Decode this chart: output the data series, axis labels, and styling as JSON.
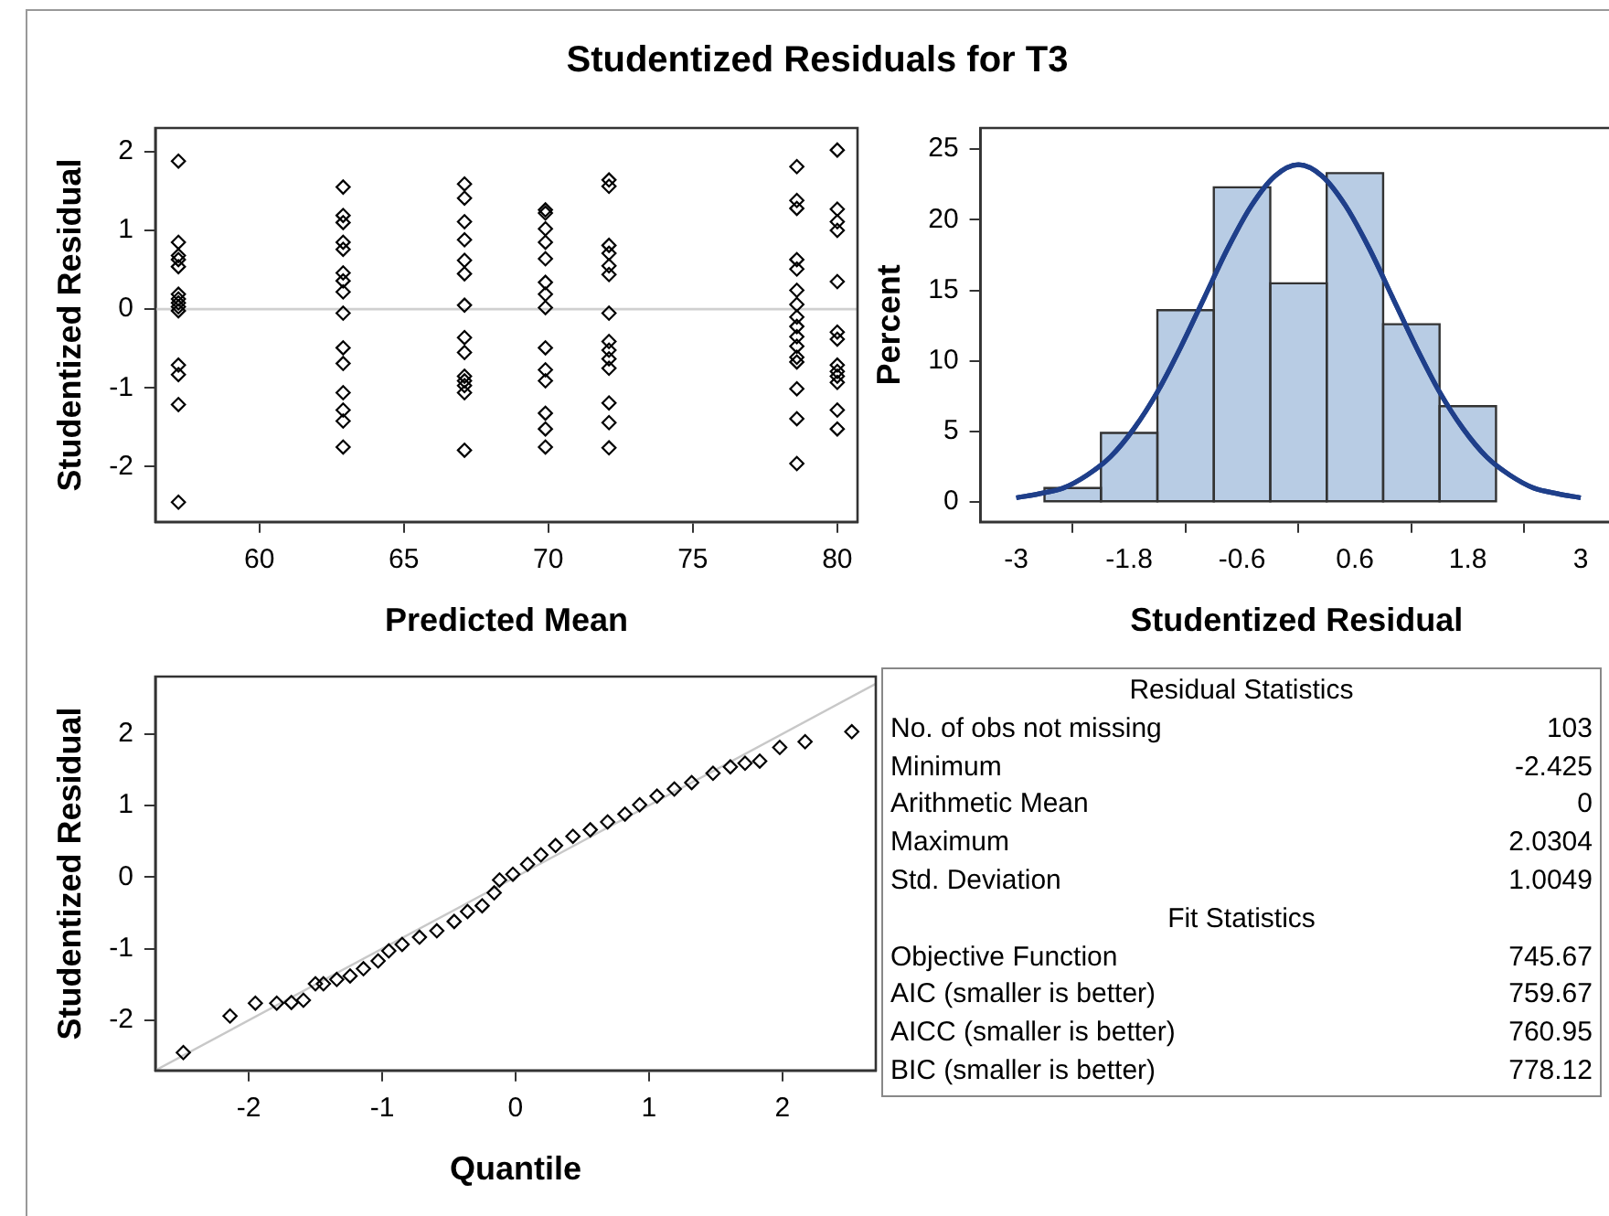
{
  "chart_data": [
    {
      "type": "scatter",
      "title": "Studentized Residuals for T3",
      "xlabel": "Predicted Mean",
      "ylabel": "Studentized Residual",
      "xlim": [
        56.4,
        80.7
      ],
      "xticks": [
        60,
        65,
        70,
        75,
        80
      ],
      "ylim": [
        -2.7,
        2.3
      ],
      "yticks": [
        -2,
        -1,
        0,
        1,
        2
      ],
      "marker": "diamond",
      "ref_lines": [
        {
          "axis": "y",
          "value": 0,
          "color": "#d0d0d0"
        }
      ],
      "series": [
        {
          "color": "#000000",
          "x": [
            57.2,
            57.2,
            57.2,
            57.2,
            57.2,
            57.2,
            57.2,
            57.2,
            57.2,
            57.2,
            57.2,
            57.2,
            57.2,
            57.2,
            62.9,
            62.9,
            62.9,
            62.9,
            62.9,
            62.9,
            62.9,
            62.9,
            62.9,
            62.9,
            62.9,
            62.9,
            62.9,
            62.9,
            62.9,
            67.1,
            67.1,
            67.1,
            67.1,
            67.1,
            67.1,
            67.1,
            67.1,
            67.1,
            67.1,
            67.1,
            67.1,
            67.1,
            67.1,
            69.9,
            69.9,
            69.9,
            69.9,
            69.9,
            69.9,
            69.9,
            69.9,
            69.9,
            69.9,
            69.9,
            69.9,
            69.9,
            69.9,
            72.1,
            72.1,
            72.1,
            72.1,
            72.1,
            72.1,
            72.1,
            72.1,
            72.1,
            72.1,
            72.1,
            72.1,
            72.1,
            72.1,
            78.6,
            78.6,
            78.6,
            78.6,
            78.6,
            78.6,
            78.6,
            78.6,
            78.6,
            78.6,
            78.6,
            78.6,
            78.6,
            78.6,
            78.6,
            78.6,
            80.0,
            80.0,
            80.0,
            80.0,
            80.0,
            80.0,
            80.0,
            80.0,
            80.0,
            80.0,
            80.0,
            80.0,
            80.0
          ],
          "values": [
            1.88,
            0.85,
            0.68,
            0.63,
            0.54,
            0.19,
            0.13,
            0.08,
            0.03,
            -0.02,
            -0.71,
            -0.83,
            -1.21,
            -2.45,
            1.55,
            1.19,
            1.1,
            0.85,
            0.76,
            0.46,
            0.36,
            0.22,
            -0.05,
            -0.49,
            -0.69,
            -1.06,
            -1.28,
            -1.42,
            -1.75,
            1.59,
            1.41,
            1.11,
            0.88,
            0.62,
            0.45,
            0.05,
            -0.36,
            -0.55,
            -0.85,
            -0.91,
            -0.97,
            -1.06,
            -1.79,
            1.26,
            1.22,
            1.02,
            0.85,
            0.64,
            0.34,
            0.19,
            0.02,
            -0.49,
            -0.77,
            -0.91,
            -1.32,
            -1.52,
            -1.75,
            1.64,
            1.56,
            0.81,
            0.71,
            0.55,
            0.44,
            -0.05,
            -0.41,
            -0.52,
            -0.63,
            -0.75,
            -1.19,
            -1.44,
            -1.76,
            1.81,
            1.38,
            1.28,
            0.63,
            0.51,
            0.24,
            0.06,
            -0.1,
            -0.22,
            -0.35,
            -0.47,
            -0.61,
            -0.67,
            -1.01,
            -1.39,
            -1.96,
            2.02,
            1.27,
            1.11,
            1.0,
            0.35,
            -0.29,
            -0.38,
            -0.71,
            -0.79,
            -0.85,
            -0.93,
            -1.28,
            -1.52
          ]
        }
      ]
    },
    {
      "type": "histogram",
      "xlabel": "Studentized Residual",
      "ylabel": "Percent",
      "xlim": [
        -3.38,
        3.34
      ],
      "xticks": [
        -3,
        -1.8,
        -0.6,
        0.6,
        1.8,
        3
      ],
      "ylim": [
        -1.4,
        26.5
      ],
      "yticks": [
        0,
        5,
        10,
        15,
        20,
        25
      ],
      "bins": [
        -2.7,
        -2.1,
        -1.5,
        -0.9,
        -0.3,
        0.3,
        0.9,
        1.5,
        2.1
      ],
      "series": [
        {
          "type": "histogram",
          "color": "#b8cce4",
          "values": [
            1.0,
            4.9,
            13.6,
            22.3,
            15.5,
            23.3,
            12.6,
            6.8
          ]
        },
        {
          "type": "line",
          "color": "#1f3f8a",
          "x": [
            -3,
            -2.75,
            -2.5,
            -2.25,
            -2,
            -1.75,
            -1.5,
            -1.25,
            -1,
            -0.75,
            -0.5,
            -0.25,
            0,
            0.25,
            0.5,
            0.75,
            1,
            1.25,
            1.5,
            1.75,
            2,
            2.25,
            2.5,
            2.75,
            3
          ],
          "values": [
            0.3,
            0.6,
            1.0,
            1.9,
            3.2,
            5.2,
            7.8,
            11,
            14.5,
            18,
            21,
            23.1,
            23.9,
            23.1,
            21,
            18,
            14.5,
            11,
            7.8,
            5.2,
            3.2,
            1.9,
            1.0,
            0.6,
            0.3
          ]
        }
      ]
    },
    {
      "type": "scatter",
      "xlabel": "Quantile",
      "ylabel": "Studentized Residual",
      "xlim": [
        -2.7,
        2.7
      ],
      "xticks": [
        -2,
        -1,
        0,
        1,
        2
      ],
      "ylim": [
        -2.7,
        2.8
      ],
      "yticks": [
        -2,
        -1,
        0,
        1,
        2
      ],
      "series": [
        {
          "type": "line",
          "color": "#c8c8c8",
          "x": [
            -2.7,
            2.7
          ],
          "values": [
            -2.7,
            2.7
          ]
        },
        {
          "type": "scatter",
          "marker": "diamond",
          "color": "#000000",
          "x": [
            -2.49,
            -2.14,
            -1.95,
            -1.79,
            -1.68,
            -1.59,
            -1.5,
            -1.44,
            -1.34,
            -1.24,
            -1.14,
            -1.03,
            -0.95,
            -0.85,
            -0.72,
            -0.59,
            -0.46,
            -0.36,
            -0.25,
            -0.16,
            -0.12,
            -0.02,
            0.09,
            0.19,
            0.3,
            0.43,
            0.56,
            0.69,
            0.82,
            0.93,
            1.06,
            1.19,
            1.32,
            1.48,
            1.61,
            1.72,
            1.83,
            1.98,
            2.17,
            2.52
          ],
          "values": [
            -2.45,
            -1.94,
            -1.76,
            -1.76,
            -1.75,
            -1.72,
            -1.49,
            -1.49,
            -1.43,
            -1.38,
            -1.28,
            -1.17,
            -1.03,
            -0.94,
            -0.84,
            -0.75,
            -0.62,
            -0.48,
            -0.4,
            -0.22,
            -0.04,
            0.04,
            0.18,
            0.31,
            0.44,
            0.57,
            0.66,
            0.77,
            0.88,
            1.01,
            1.13,
            1.23,
            1.32,
            1.45,
            1.54,
            1.59,
            1.62,
            1.81,
            1.89,
            2.03
          ]
        }
      ]
    },
    {
      "type": "other",
      "title": "Residual Statistics",
      "categories": [
        "No. of obs not missing",
        "Minimum",
        "Arithmetic Mean",
        "Maximum",
        "Std. Deviation"
      ],
      "values": [
        103,
        -2.425,
        0,
        2.0304,
        1.0049
      ],
      "data_labels": true
    },
    {
      "type": "other",
      "title": "Fit Statistics",
      "categories": [
        "Objective Function",
        "AIC (smaller is better)",
        "AICC (smaller is better)",
        "BIC (smaller is better)"
      ],
      "values": [
        745.67,
        759.67,
        760.95,
        778.12
      ],
      "data_labels": true
    }
  ]
}
